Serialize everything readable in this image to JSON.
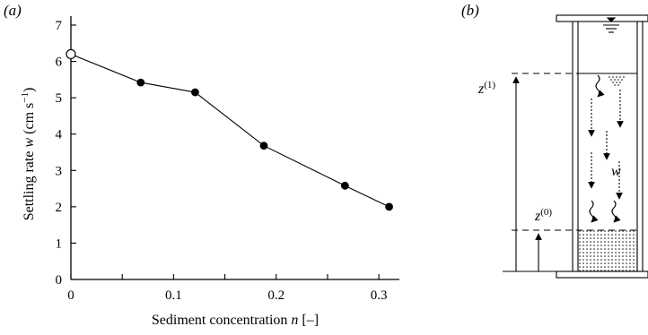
{
  "panels": {
    "a": "(a)",
    "b": "(b)"
  },
  "chart_data": {
    "type": "line",
    "title": "",
    "xlabel": "Sediment concentration n [–]",
    "ylabel": "Settling rate w (cm s⁻¹)",
    "xlim": [
      0,
      0.32
    ],
    "ylim": [
      0,
      7
    ],
    "x_ticks_labeled": [
      0,
      0.1,
      0.2,
      0.3
    ],
    "x_tick_labels": [
      "0",
      "0.1",
      "0.2",
      "0.3"
    ],
    "x_ticks_minor": [
      0.05,
      0.15,
      0.25
    ],
    "y_ticks": [
      0,
      1,
      2,
      3,
      4,
      5,
      6,
      7
    ],
    "y_tick_labels": [
      "0",
      "1",
      "2",
      "3",
      "4",
      "5",
      "6",
      "7"
    ],
    "grid": false,
    "series": [
      {
        "x": [
          0,
          0.068,
          0.121,
          0.188,
          0.267,
          0.31
        ],
        "y": [
          6.2,
          5.42,
          5.15,
          3.68,
          2.58,
          2.0
        ],
        "markers": [
          "open",
          "filled",
          "filled",
          "filled",
          "filled",
          "filled"
        ]
      }
    ]
  },
  "diagram": {
    "z1_label": "z(1)",
    "z0_label": "z(0)",
    "w_label": "w"
  }
}
